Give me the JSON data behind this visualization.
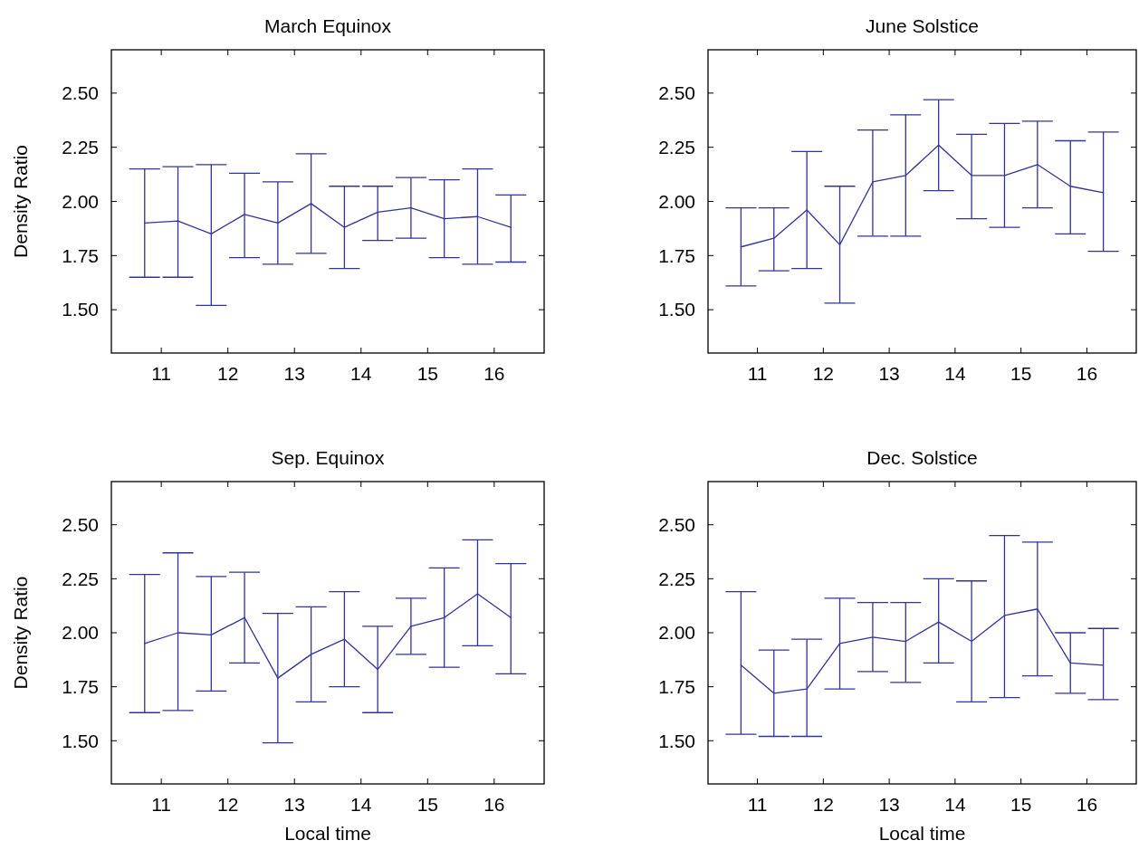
{
  "chart_data": [
    {
      "type": "line",
      "title": "March Equinox",
      "ylabel": "Density Ratio",
      "color": "#333399",
      "xlim": [
        10.25,
        16.75
      ],
      "ylim": [
        1.3,
        2.7
      ],
      "xticks": [
        11,
        12,
        13,
        14,
        15,
        16
      ],
      "yticks": [
        {
          "value": 1.5,
          "label": "1.50"
        },
        {
          "value": 1.75,
          "label": "1.75"
        },
        {
          "value": 2,
          "label": "2.00"
        },
        {
          "value": 2.25,
          "label": "2.25"
        },
        {
          "value": 2.5,
          "label": "2.50"
        }
      ],
      "x": [
        10.75,
        11.25,
        11.75,
        12.25,
        12.75,
        13.25,
        13.75,
        14.25,
        14.75,
        15.25,
        15.75,
        16.25
      ],
      "values": [
        1.9,
        1.91,
        1.85,
        1.94,
        1.9,
        1.99,
        1.88,
        1.95,
        1.97,
        1.92,
        1.93,
        1.88
      ],
      "errors": [
        [
          1.65,
          2.15
        ],
        [
          1.65,
          2.16
        ],
        [
          1.52,
          2.17
        ],
        [
          1.74,
          2.13
        ],
        [
          1.71,
          2.09
        ],
        [
          1.76,
          2.22
        ],
        [
          1.69,
          2.07
        ],
        [
          1.82,
          2.07
        ],
        [
          1.83,
          2.11
        ],
        [
          1.74,
          2.1
        ],
        [
          1.71,
          2.15
        ],
        [
          1.72,
          2.03
        ]
      ]
    },
    {
      "type": "line",
      "title": "June Solstice",
      "color": "#333399",
      "xlim": [
        10.25,
        16.75
      ],
      "ylim": [
        1.3,
        2.7
      ],
      "xticks": [
        11,
        12,
        13,
        14,
        15,
        16
      ],
      "yticks": [
        {
          "value": 1.5,
          "label": "1.50"
        },
        {
          "value": 1.75,
          "label": "1.75"
        },
        {
          "value": 2,
          "label": "2.00"
        },
        {
          "value": 2.25,
          "label": "2.25"
        },
        {
          "value": 2.5,
          "label": "2.50"
        }
      ],
      "x": [
        10.75,
        11.25,
        11.75,
        12.25,
        12.75,
        13.25,
        13.75,
        14.25,
        14.75,
        15.25,
        15.75,
        16.25
      ],
      "values": [
        1.79,
        1.83,
        1.96,
        1.8,
        2.09,
        2.12,
        2.26,
        2.12,
        2.12,
        2.17,
        2.07,
        2.04
      ],
      "errors": [
        [
          1.61,
          1.97
        ],
        [
          1.68,
          1.97
        ],
        [
          1.69,
          2.23
        ],
        [
          1.53,
          2.07
        ],
        [
          1.84,
          2.33
        ],
        [
          1.84,
          2.4
        ],
        [
          2.05,
          2.47
        ],
        [
          1.92,
          2.31
        ],
        [
          1.88,
          2.36
        ],
        [
          1.97,
          2.37
        ],
        [
          1.85,
          2.28
        ],
        [
          1.77,
          2.32
        ]
      ]
    },
    {
      "type": "line",
      "title": "Sep. Equinox",
      "xlabel": "Local time",
      "ylabel": "Density Ratio",
      "color": "#333399",
      "xlim": [
        10.25,
        16.75
      ],
      "ylim": [
        1.3,
        2.7
      ],
      "xticks": [
        11,
        12,
        13,
        14,
        15,
        16
      ],
      "yticks": [
        {
          "value": 1.5,
          "label": "1.50"
        },
        {
          "value": 1.75,
          "label": "1.75"
        },
        {
          "value": 2,
          "label": "2.00"
        },
        {
          "value": 2.25,
          "label": "2.25"
        },
        {
          "value": 2.5,
          "label": "2.50"
        }
      ],
      "x": [
        10.75,
        11.25,
        11.75,
        12.25,
        12.75,
        13.25,
        13.75,
        14.25,
        14.75,
        15.25,
        15.75,
        16.25
      ],
      "values": [
        1.95,
        2.0,
        1.99,
        2.07,
        1.79,
        1.9,
        1.97,
        1.83,
        2.03,
        2.07,
        2.18,
        2.07
      ],
      "errors": [
        [
          1.63,
          2.27
        ],
        [
          1.64,
          2.37
        ],
        [
          1.73,
          2.26
        ],
        [
          1.86,
          2.28
        ],
        [
          1.49,
          2.09
        ],
        [
          1.68,
          2.12
        ],
        [
          1.75,
          2.19
        ],
        [
          1.63,
          2.03
        ],
        [
          1.9,
          2.16
        ],
        [
          1.84,
          2.3
        ],
        [
          1.94,
          2.43
        ],
        [
          1.81,
          2.32
        ]
      ]
    },
    {
      "type": "line",
      "title": "Dec. Solstice",
      "xlabel": "Local time",
      "color": "#333399",
      "xlim": [
        10.25,
        16.75
      ],
      "ylim": [
        1.3,
        2.7
      ],
      "xticks": [
        11,
        12,
        13,
        14,
        15,
        16
      ],
      "yticks": [
        {
          "value": 1.5,
          "label": "1.50"
        },
        {
          "value": 1.75,
          "label": "1.75"
        },
        {
          "value": 2,
          "label": "2.00"
        },
        {
          "value": 2.25,
          "label": "2.25"
        },
        {
          "value": 2.5,
          "label": "2.50"
        }
      ],
      "x": [
        10.75,
        11.25,
        11.75,
        12.25,
        12.75,
        13.25,
        13.75,
        14.25,
        14.75,
        15.25,
        15.75,
        16.25
      ],
      "values": [
        1.85,
        1.72,
        1.74,
        1.95,
        1.98,
        1.96,
        2.05,
        1.96,
        2.08,
        2.11,
        1.86,
        1.85
      ],
      "errors": [
        [
          1.53,
          2.19
        ],
        [
          1.52,
          1.92
        ],
        [
          1.52,
          1.97
        ],
        [
          1.74,
          2.16
        ],
        [
          1.82,
          2.14
        ],
        [
          1.77,
          2.14
        ],
        [
          1.86,
          2.25
        ],
        [
          1.68,
          2.24
        ],
        [
          1.7,
          2.45
        ],
        [
          1.8,
          2.42
        ],
        [
          1.72,
          2.0
        ],
        [
          1.69,
          2.02
        ]
      ]
    }
  ]
}
